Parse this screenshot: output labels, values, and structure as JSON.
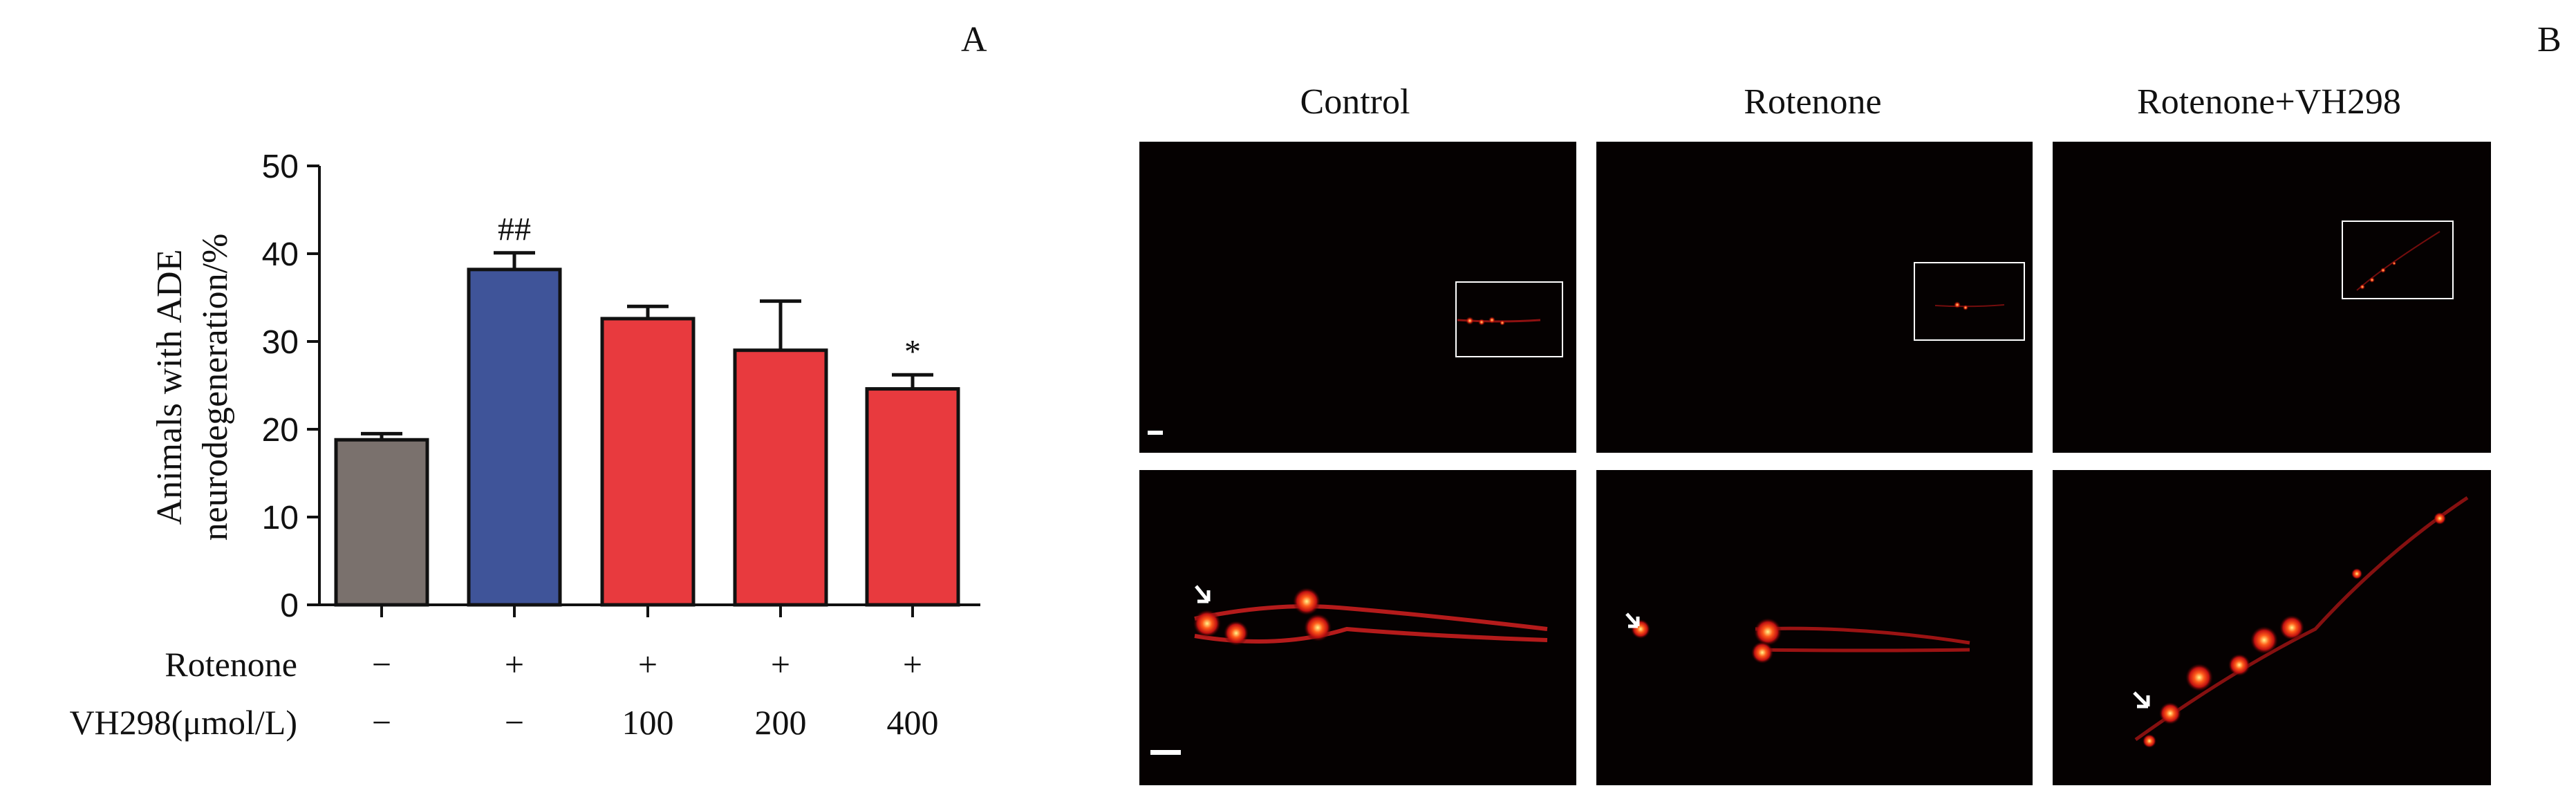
{
  "panels": {
    "a_label": "A",
    "b_label": "B"
  },
  "chart_data": {
    "type": "bar",
    "ylabel_line1": "Animals with ADE",
    "ylabel_line2": "neurodegeneration/%",
    "ylim": [
      0,
      50
    ],
    "yticks": [
      0,
      10,
      20,
      30,
      40,
      50
    ],
    "categories": [
      "Control",
      "Rotenone",
      "Rotenone+VH298 100",
      "Rotenone+VH298 200",
      "Rotenone+VH298 400"
    ],
    "values": [
      18.8,
      38.2,
      32.6,
      29.0,
      24.6
    ],
    "errors": [
      0.7,
      1.9,
      1.4,
      5.6,
      1.6
    ],
    "bar_colors": [
      "#7a716d",
      "#3f5499",
      "#e83a3e",
      "#e83a3e",
      "#e83a3e"
    ],
    "significance": [
      "",
      "##",
      "",
      "",
      "*"
    ],
    "conditions": [
      {
        "label": "Rotenone",
        "values": [
          "−",
          "+",
          "+",
          "+",
          "+"
        ]
      },
      {
        "label": "VH298(μmol/L)",
        "values": [
          "−",
          "−",
          "100",
          "200",
          "400"
        ]
      }
    ]
  },
  "images": {
    "columns": [
      {
        "title": "Control",
        "arrow": true
      },
      {
        "title": "Rotenone",
        "arrow": true
      },
      {
        "title": "Rotenone+VH298",
        "arrow": true
      }
    ],
    "scale_bar_color": "#ffffff"
  }
}
